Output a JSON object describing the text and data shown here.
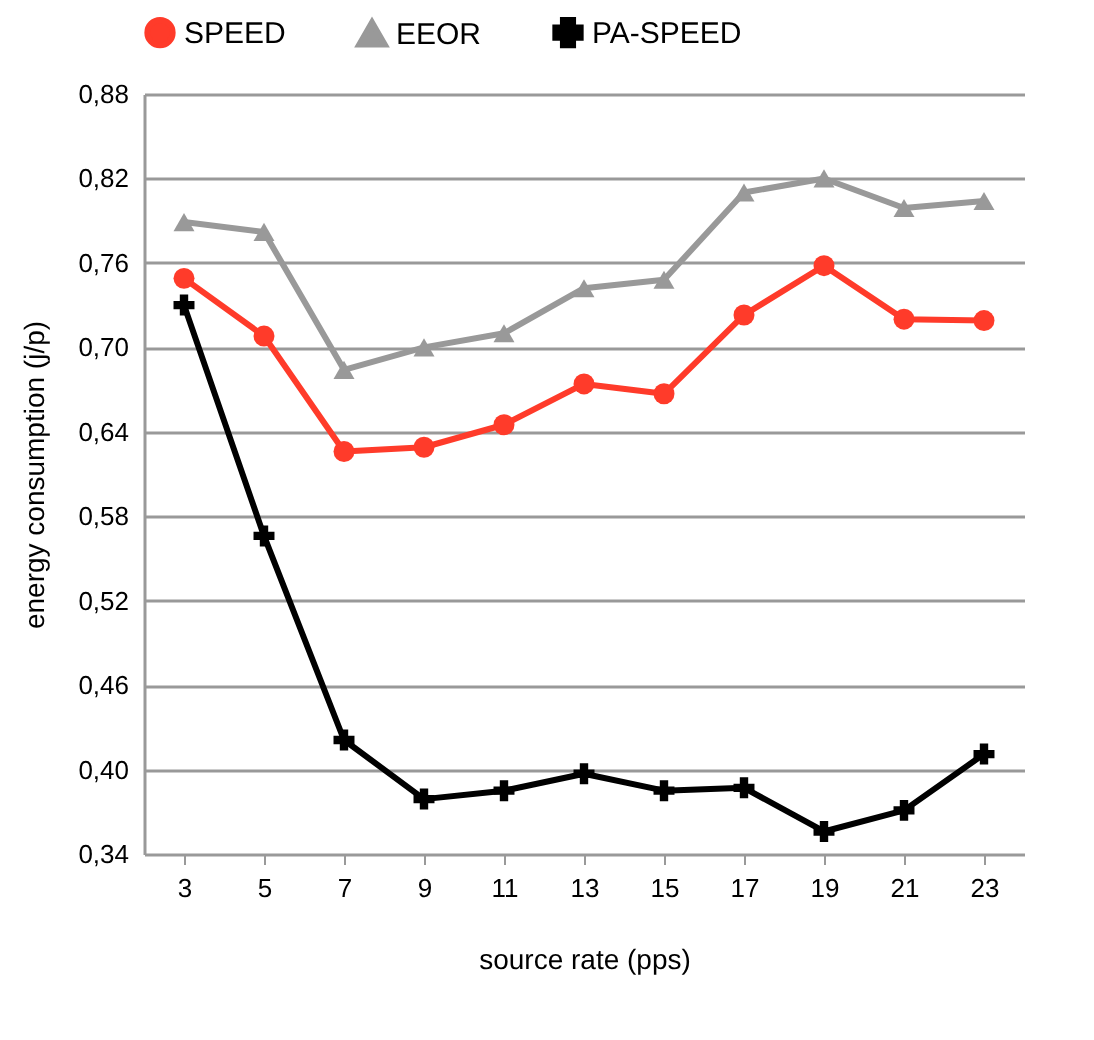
{
  "chart_data": {
    "type": "line",
    "xlabel": "source rate (pps)",
    "ylabel": "energy consumption (j/p)",
    "categories": [
      "3",
      "5",
      "7",
      "9",
      "11",
      "13",
      "15",
      "17",
      "19",
      "21",
      "23"
    ],
    "series": [
      {
        "name": "SPEED",
        "color": "#ff3b2a",
        "marker": "circle",
        "values": [
          0.749,
          0.708,
          0.626,
          0.629,
          0.645,
          0.674,
          0.667,
          0.723,
          0.758,
          0.72,
          0.719
        ]
      },
      {
        "name": "EEOR",
        "color": "#999999",
        "marker": "triangle",
        "values": [
          0.789,
          0.782,
          0.684,
          0.7,
          0.71,
          0.742,
          0.748,
          0.81,
          0.82,
          0.799,
          0.804
        ]
      },
      {
        "name": "PA-SPEED",
        "color": "#000000",
        "marker": "cross",
        "values": [
          0.73,
          0.566,
          0.421,
          0.379,
          0.385,
          0.397,
          0.385,
          0.387,
          0.356,
          0.371,
          0.411
        ]
      }
    ],
    "ylim": [
      0.34,
      0.88
    ],
    "yticks": [
      {
        "value": 0.34,
        "label": "0,34"
      },
      {
        "value": 0.4,
        "label": "0,40"
      },
      {
        "value": 0.46,
        "label": "0,46"
      },
      {
        "value": 0.52,
        "label": "0,52"
      },
      {
        "value": 0.58,
        "label": "0,58"
      },
      {
        "value": 0.64,
        "label": "0,64"
      },
      {
        "value": 0.7,
        "label": "0,70"
      },
      {
        "value": 0.76,
        "label": "0,76"
      },
      {
        "value": 0.82,
        "label": "0,82"
      },
      {
        "value": 0.88,
        "label": "0,88"
      }
    ],
    "grid": "y",
    "legend": "top",
    "line_style": "solid"
  }
}
